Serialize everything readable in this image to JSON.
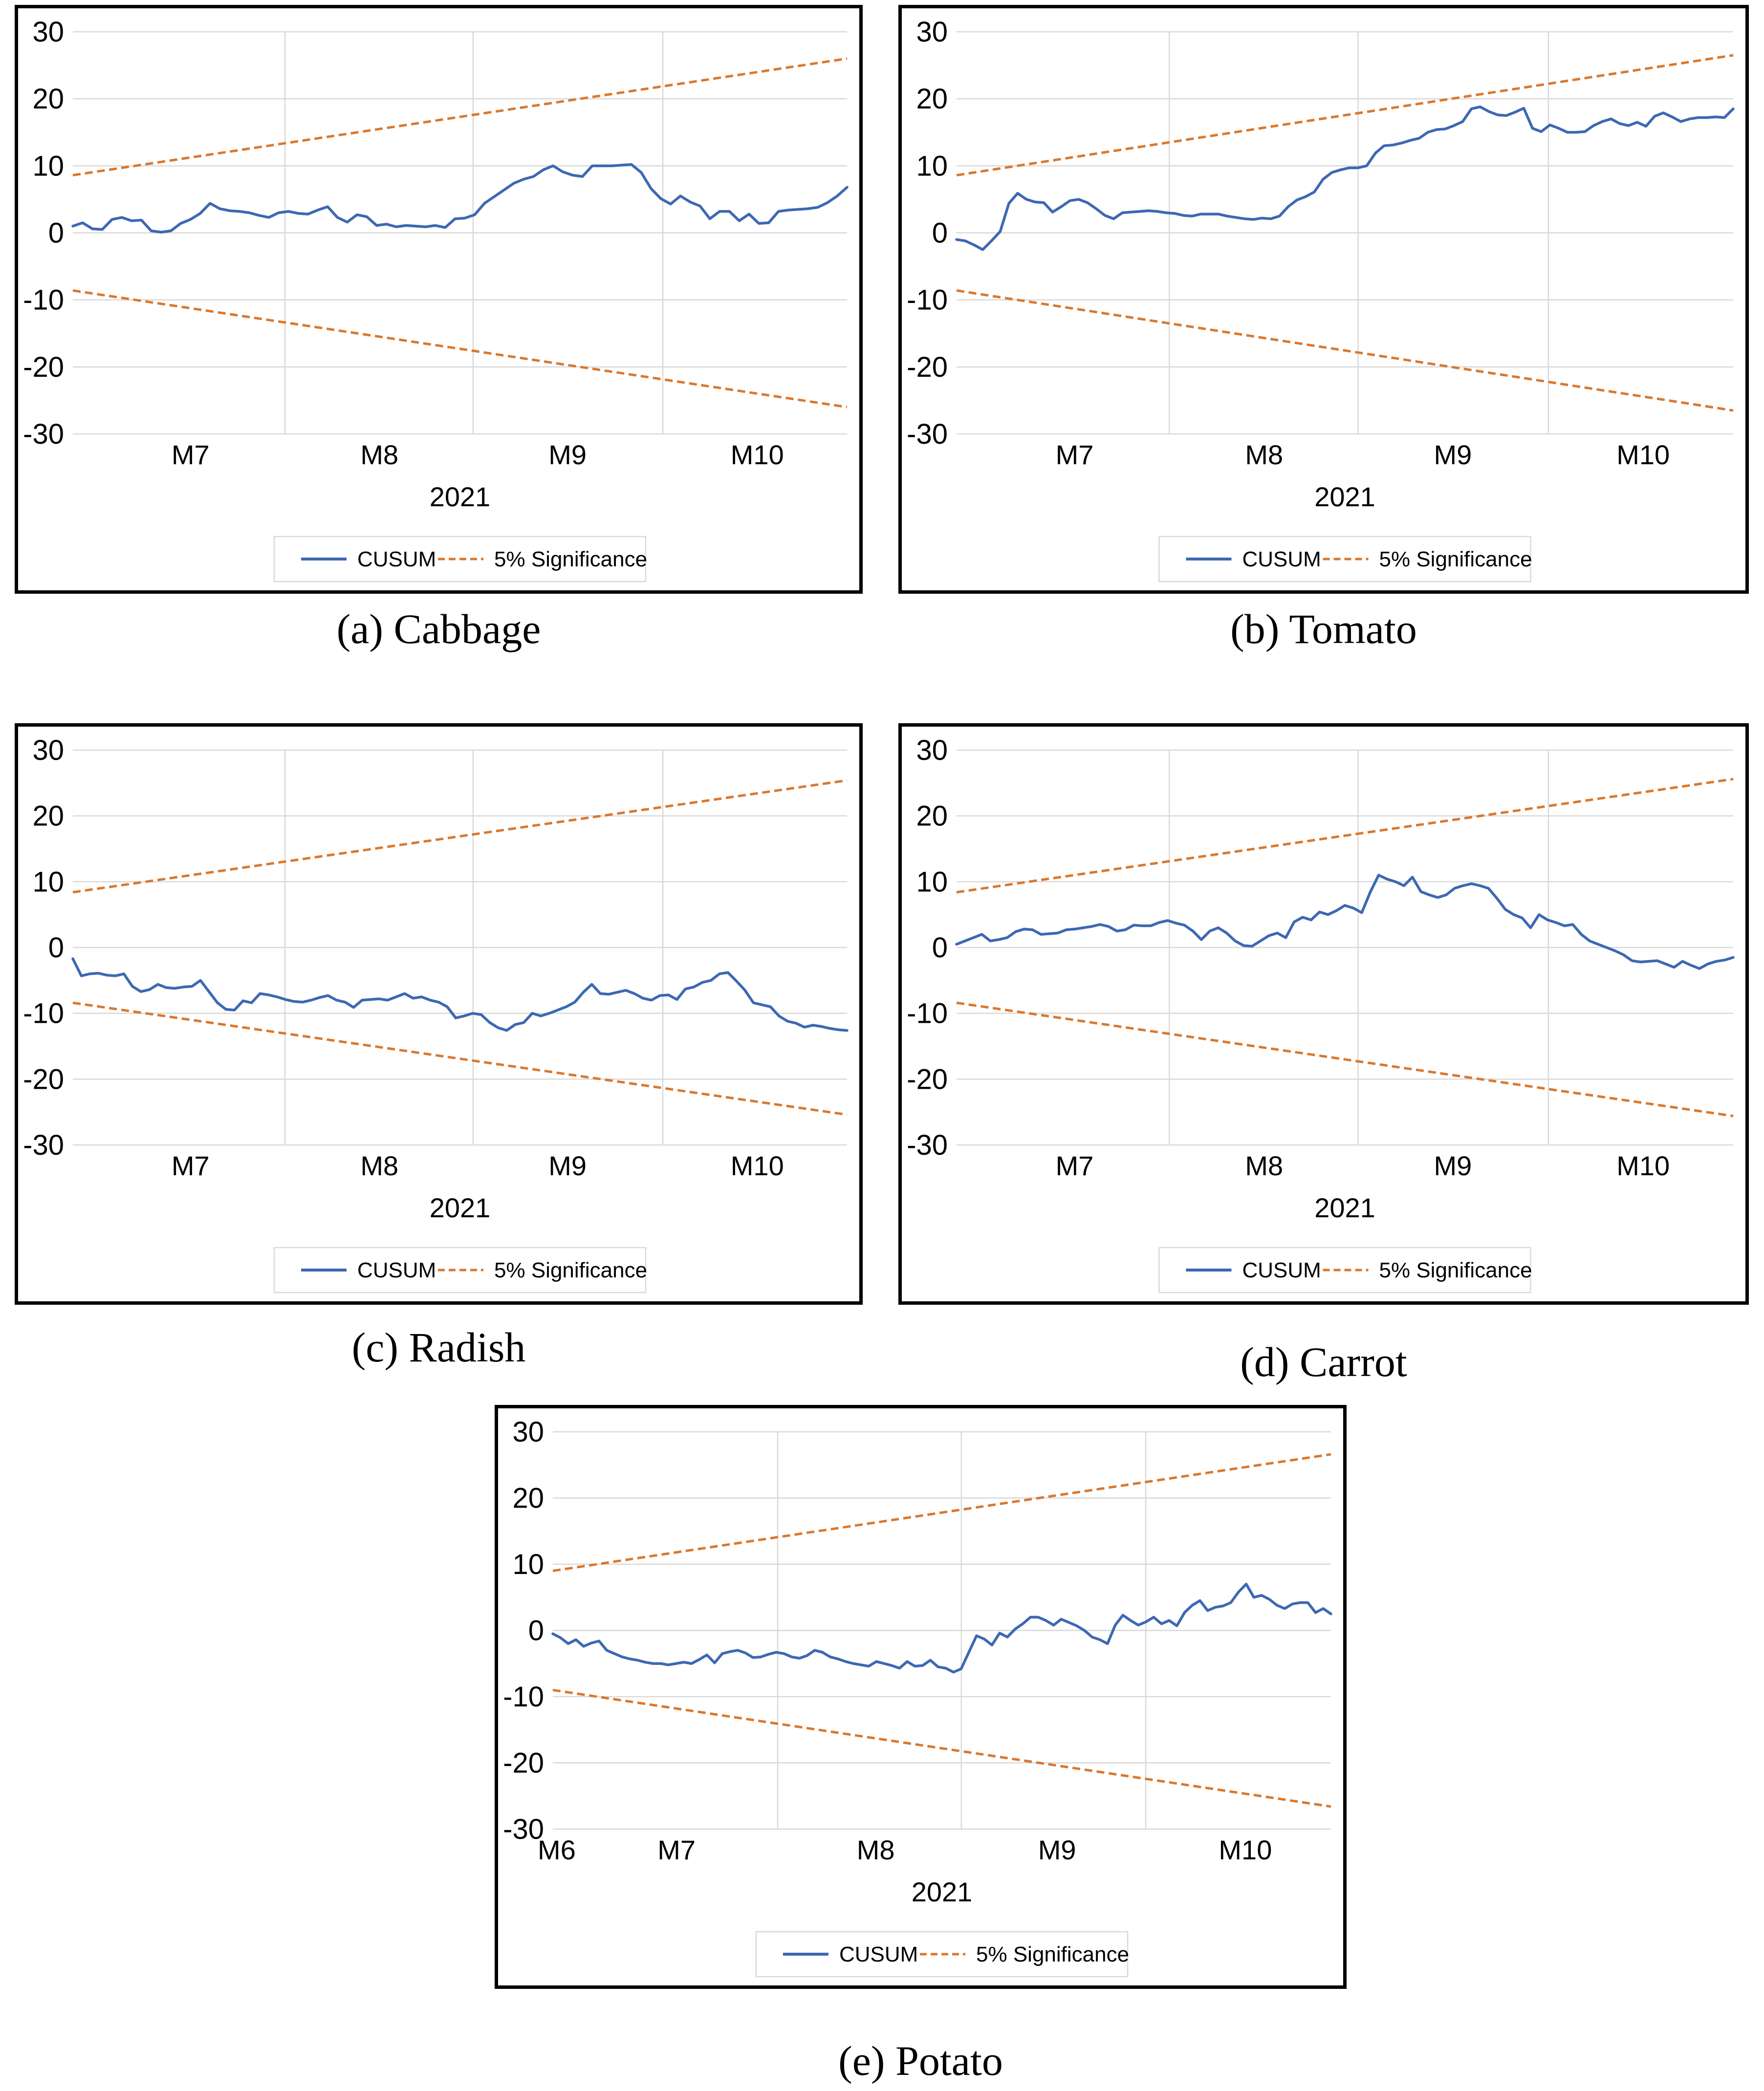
{
  "figure": {
    "year_label": "2021",
    "y_ticks": [
      30,
      20,
      10,
      0,
      -10,
      -20,
      -30
    ],
    "legend": {
      "cusum_label": "CUSUM",
      "significance_label": "5% Significance"
    },
    "theme": {
      "cusum_color": "#3D68B2",
      "significance_color": "#D9782E",
      "gridline_color": "#D9D9D9",
      "legend_border_color": "#D9D9D9",
      "panel_border_color": "#000000",
      "text_color": "#000000",
      "background_color": "#FFFFFF"
    }
  },
  "chart_data": [
    {
      "type": "line",
      "caption": "(a) Cabbage",
      "x_axis": {
        "labels": [
          {
            "text": "M7",
            "f": 0.152
          },
          {
            "text": "M8",
            "f": 0.396
          },
          {
            "text": "M9",
            "f": 0.639
          },
          {
            "text": "M10",
            "f": 0.884
          }
        ],
        "gridlines": [
          0.274,
          0.517,
          0.762
        ]
      },
      "ylim": [
        -30,
        30
      ],
      "series": {
        "significance_upper": {
          "start": 8.6,
          "end": 26.0
        },
        "significance_lower": {
          "start": -8.6,
          "end": -26.0
        },
        "cusum": [
          1.0,
          1.5,
          0.6,
          0.5,
          2.0,
          2.3,
          1.8,
          1.9,
          0.3,
          0.1,
          0.3,
          1.4,
          2.0,
          2.9,
          4.4,
          3.6,
          3.3,
          3.2,
          3.0,
          2.6,
          2.3,
          3.0,
          3.2,
          2.9,
          2.8,
          3.4,
          3.9,
          2.3,
          1.6,
          2.7,
          2.4,
          1.1,
          1.3,
          0.9,
          1.1,
          1.0,
          0.9,
          1.1,
          0.8,
          2.1,
          2.2,
          2.7,
          4.4,
          5.4,
          6.4,
          7.4,
          8.0,
          8.4,
          9.4,
          10.0,
          9.1,
          8.6,
          8.4,
          10.0,
          10.0,
          10.0,
          10.1,
          10.2,
          9.0,
          6.6,
          5.1,
          4.3,
          5.5,
          4.6,
          4.0,
          2.1,
          3.2,
          3.2,
          1.8,
          2.8,
          1.4,
          1.5,
          3.2,
          3.4,
          3.5,
          3.6,
          3.8,
          4.5,
          5.5,
          6.8
        ]
      }
    },
    {
      "type": "line",
      "caption": "(b) Tomato",
      "x_axis": {
        "labels": [
          {
            "text": "M7",
            "f": 0.152
          },
          {
            "text": "M8",
            "f": 0.396
          },
          {
            "text": "M9",
            "f": 0.639
          },
          {
            "text": "M10",
            "f": 0.884
          }
        ],
        "gridlines": [
          0.274,
          0.517,
          0.762
        ]
      },
      "ylim": [
        -30,
        30
      ],
      "series": {
        "significance_upper": {
          "start": 8.6,
          "end": 26.5
        },
        "significance_lower": {
          "start": -8.6,
          "end": -26.5
        },
        "cusum": [
          -1.0,
          -1.2,
          -1.8,
          -2.5,
          -1.2,
          0.2,
          4.4,
          5.9,
          5.0,
          4.6,
          4.5,
          3.1,
          3.9,
          4.8,
          5.0,
          4.5,
          3.6,
          2.6,
          2.1,
          3.0,
          3.1,
          3.2,
          3.3,
          3.2,
          3.0,
          2.9,
          2.6,
          2.5,
          2.8,
          2.8,
          2.8,
          2.5,
          2.3,
          2.1,
          2.0,
          2.2,
          2.1,
          2.5,
          3.9,
          4.9,
          5.4,
          6.1,
          8.0,
          9.0,
          9.4,
          9.7,
          9.7,
          10.0,
          11.9,
          13.0,
          13.1,
          13.4,
          13.8,
          14.1,
          15.0,
          15.4,
          15.5,
          16.0,
          16.6,
          18.5,
          18.8,
          18.1,
          17.6,
          17.5,
          18.0,
          18.6,
          15.6,
          15.1,
          16.1,
          15.6,
          15.0,
          15.0,
          15.1,
          16.0,
          16.6,
          17.0,
          16.3,
          16.0,
          16.5,
          15.9,
          17.4,
          17.9,
          17.3,
          16.6,
          17.0,
          17.2,
          17.2,
          17.3,
          17.2,
          18.5
        ]
      }
    },
    {
      "type": "line",
      "caption": "(c) Radish",
      "x_axis": {
        "labels": [
          {
            "text": "M7",
            "f": 0.152
          },
          {
            "text": "M8",
            "f": 0.396
          },
          {
            "text": "M9",
            "f": 0.639
          },
          {
            "text": "M10",
            "f": 0.884
          }
        ],
        "gridlines": [
          0.274,
          0.517,
          0.762
        ]
      },
      "ylim": [
        -30,
        30
      ],
      "series": {
        "significance_upper": {
          "start": 8.4,
          "end": 25.4
        },
        "significance_lower": {
          "start": -8.4,
          "end": -25.4
        },
        "cusum": [
          -1.7,
          -4.3,
          -4.0,
          -3.9,
          -4.2,
          -4.3,
          -4.0,
          -5.9,
          -6.7,
          -6.4,
          -5.6,
          -6.1,
          -6.2,
          -6.0,
          -5.9,
          -5.0,
          -6.7,
          -8.4,
          -9.4,
          -9.5,
          -8.1,
          -8.4,
          -7.0,
          -7.2,
          -7.5,
          -7.9,
          -8.2,
          -8.3,
          -8.0,
          -7.6,
          -7.3,
          -8.0,
          -8.3,
          -9.1,
          -8.0,
          -7.9,
          -7.8,
          -8.0,
          -7.5,
          -7.0,
          -7.7,
          -7.5,
          -8.0,
          -8.3,
          -9.0,
          -10.7,
          -10.4,
          -10.0,
          -10.2,
          -11.4,
          -12.2,
          -12.6,
          -11.7,
          -11.4,
          -10.0,
          -10.4,
          -10.0,
          -9.5,
          -9.0,
          -8.3,
          -6.8,
          -5.6,
          -7.0,
          -7.1,
          -6.8,
          -6.5,
          -7.0,
          -7.7,
          -8.0,
          -7.3,
          -7.2,
          -7.9,
          -6.3,
          -6.0,
          -5.3,
          -5.0,
          -4.0,
          -3.8,
          -5.1,
          -6.5,
          -8.4,
          -8.7,
          -9.0,
          -10.4,
          -11.2,
          -11.5,
          -12.1,
          -11.8,
          -12.0,
          -12.3,
          -12.5,
          -12.6
        ]
      }
    },
    {
      "type": "line",
      "caption": "(d) Carrot",
      "x_axis": {
        "labels": [
          {
            "text": "M7",
            "f": 0.152
          },
          {
            "text": "M8",
            "f": 0.396
          },
          {
            "text": "M9",
            "f": 0.639
          },
          {
            "text": "M10",
            "f": 0.884
          }
        ],
        "gridlines": [
          0.274,
          0.517,
          0.762
        ]
      },
      "ylim": [
        -30,
        30
      ],
      "series": {
        "significance_upper": {
          "start": 8.4,
          "end": 25.6
        },
        "significance_lower": {
          "start": -8.4,
          "end": -25.6
        },
        "cusum": [
          0.5,
          1.0,
          1.5,
          2.0,
          1.0,
          1.2,
          1.5,
          2.4,
          2.8,
          2.7,
          2.0,
          2.1,
          2.2,
          2.7,
          2.8,
          3.0,
          3.2,
          3.5,
          3.2,
          2.5,
          2.7,
          3.4,
          3.3,
          3.3,
          3.8,
          4.1,
          3.7,
          3.4,
          2.5,
          1.2,
          2.5,
          3.0,
          2.2,
          1.0,
          0.3,
          0.2,
          1.0,
          1.8,
          2.2,
          1.5,
          3.9,
          4.6,
          4.2,
          5.4,
          5.0,
          5.6,
          6.4,
          6.0,
          5.3,
          8.4,
          11.0,
          10.4,
          10.0,
          9.4,
          10.7,
          8.5,
          8.0,
          7.6,
          8.0,
          9.0,
          9.4,
          9.7,
          9.4,
          9.0,
          7.5,
          5.8,
          5.0,
          4.5,
          3.0,
          5.0,
          4.2,
          3.8,
          3.3,
          3.5,
          2.0,
          1.0,
          0.5,
          0.0,
          -0.5,
          -1.1,
          -2.0,
          -2.2,
          -2.1,
          -2.0,
          -2.5,
          -3.0,
          -2.1,
          -2.7,
          -3.2,
          -2.5,
          -2.1,
          -1.9,
          -1.5
        ]
      }
    },
    {
      "type": "line",
      "caption": "(e) Potato",
      "x_axis": {
        "labels": [
          {
            "text": "M6",
            "f": 0.005
          },
          {
            "text": "M7",
            "f": 0.159
          },
          {
            "text": "M8",
            "f": 0.415
          },
          {
            "text": "M9",
            "f": 0.648
          },
          {
            "text": "M10",
            "f": 0.89
          }
        ],
        "gridlines": [
          0.289,
          0.525,
          0.762
        ]
      },
      "ylim": [
        -30,
        30
      ],
      "series": {
        "significance_upper": {
          "start": 9.0,
          "end": 26.6
        },
        "significance_lower": {
          "start": -9.0,
          "end": -26.6
        },
        "cusum": [
          -0.5,
          -1.1,
          -2.0,
          -1.4,
          -2.4,
          -1.9,
          -1.6,
          -3.0,
          -3.5,
          -4.0,
          -4.3,
          -4.5,
          -4.8,
          -5.0,
          -5.0,
          -5.2,
          -5.0,
          -4.8,
          -5.0,
          -4.4,
          -3.7,
          -4.9,
          -3.5,
          -3.2,
          -3.0,
          -3.4,
          -4.1,
          -4.0,
          -3.6,
          -3.3,
          -3.5,
          -4.0,
          -4.2,
          -3.8,
          -3.0,
          -3.3,
          -4.0,
          -4.3,
          -4.7,
          -5.0,
          -5.2,
          -5.4,
          -4.7,
          -5.0,
          -5.3,
          -5.7,
          -4.7,
          -5.4,
          -5.3,
          -4.5,
          -5.5,
          -5.7,
          -6.3,
          -5.8,
          -3.3,
          -0.8,
          -1.3,
          -2.2,
          -0.4,
          -1.0,
          0.2,
          1.0,
          2.0,
          2.0,
          1.5,
          0.8,
          1.7,
          1.2,
          0.7,
          0.0,
          -1.0,
          -1.4,
          -2.0,
          0.8,
          2.3,
          1.5,
          0.8,
          1.3,
          2.0,
          1.0,
          1.5,
          0.7,
          2.7,
          3.8,
          4.5,
          3.0,
          3.5,
          3.7,
          4.2,
          5.8,
          7.0,
          5.0,
          5.3,
          4.7,
          3.8,
          3.3,
          4.0,
          4.2,
          4.2,
          2.7,
          3.3,
          2.5
        ]
      }
    }
  ]
}
